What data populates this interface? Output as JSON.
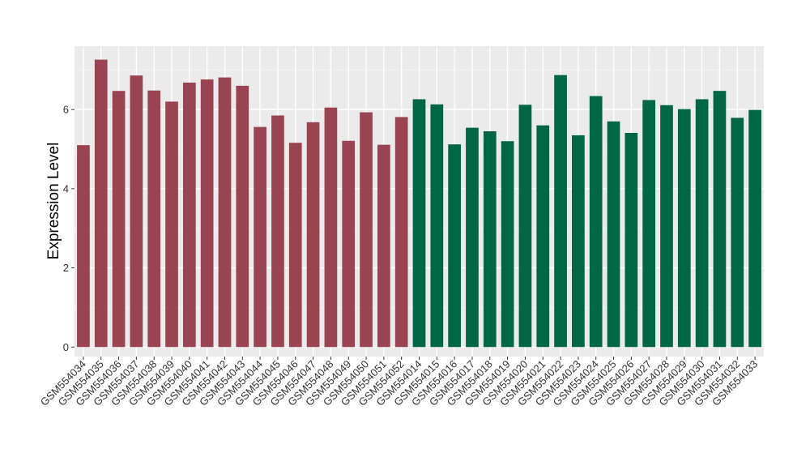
{
  "chart_data": {
    "type": "bar",
    "ylabel": "Expression Level",
    "xlabel": "",
    "ylim": [
      -0.24,
      7.6
    ],
    "yticks": [
      0,
      2,
      4,
      6
    ],
    "grid": true,
    "legend": "none",
    "background": "#EBEBEB",
    "colors": {
      "group_a": "#9A4452",
      "group_b": "#006745"
    },
    "categories": [
      "GSM554034",
      "GSM554035",
      "GSM554036",
      "GSM554037",
      "GSM554038",
      "GSM554039",
      "GSM554040",
      "GSM554041",
      "GSM554042",
      "GSM554043",
      "GSM554044",
      "GSM554045",
      "GSM554046",
      "GSM554047",
      "GSM554048",
      "GSM554049",
      "GSM554050",
      "GSM554051",
      "GSM554052",
      "GSM554014",
      "GSM554015",
      "GSM554016",
      "GSM554017",
      "GSM554018",
      "GSM554019",
      "GSM554020",
      "GSM554021",
      "GSM554022",
      "GSM554023",
      "GSM554024",
      "GSM554025",
      "GSM554026",
      "GSM554027",
      "GSM554028",
      "GSM554029",
      "GSM554030",
      "GSM554031",
      "GSM554032",
      "GSM554033"
    ],
    "values": [
      5.1,
      7.26,
      6.47,
      6.86,
      6.48,
      6.2,
      6.68,
      6.76,
      6.81,
      6.6,
      5.56,
      5.85,
      5.16,
      5.68,
      6.05,
      5.21,
      5.93,
      5.11,
      5.81,
      6.26,
      6.13,
      5.12,
      5.54,
      5.45,
      5.2,
      6.12,
      5.6,
      6.87,
      5.35,
      6.34,
      5.7,
      5.41,
      6.24,
      6.11,
      6.01,
      6.26,
      6.47,
      5.79,
      5.99
    ],
    "groups": [
      "a",
      "a",
      "a",
      "a",
      "a",
      "a",
      "a",
      "a",
      "a",
      "a",
      "a",
      "a",
      "a",
      "a",
      "a",
      "a",
      "a",
      "a",
      "a",
      "b",
      "b",
      "b",
      "b",
      "b",
      "b",
      "b",
      "b",
      "b",
      "b",
      "b",
      "b",
      "b",
      "b",
      "b",
      "b",
      "b",
      "b",
      "b",
      "b"
    ]
  }
}
